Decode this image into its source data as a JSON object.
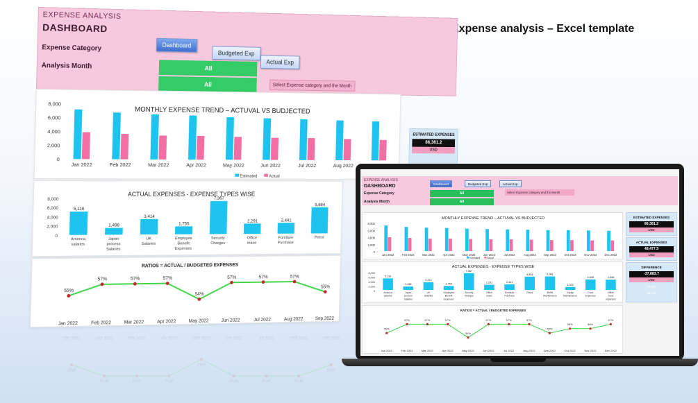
{
  "headline": "Expense analysis – Excel template",
  "dashboard": {
    "title1": "EXPENSE ANALYSIS",
    "title2": "DASHBOARD",
    "buttons": [
      "Dashboard",
      "Budgeted Exp",
      "Actual Exp"
    ],
    "filter_labels": [
      "Expense Category",
      "Analysis Month"
    ],
    "filter_values": [
      "All",
      "All"
    ],
    "hint": "Select Expense category and the Month",
    "kpis": [
      {
        "title": "ESTIMATED EXPENSES",
        "value": "86,361.2",
        "unit": "USD"
      },
      {
        "title": "ACTUAL EXPENSES",
        "value": "48,477.5",
        "unit": "USD"
      },
      {
        "title": "DIFFERENCE",
        "value": "-37,883.7",
        "unit": "USD"
      }
    ],
    "kpi_extra": [
      "57.0%",
      "56.1%"
    ]
  },
  "chart_data": [
    {
      "type": "bar",
      "title": "MONTHLY EXPENSE TREND – ACTUVAL VS BUDJECTED",
      "categories": [
        "Jan 2022",
        "Feb 2022",
        "Mar 2022",
        "Apr 2022",
        "May 2022",
        "Jun 2022",
        "Jul 2022",
        "Aug 2022",
        "Sep 2022",
        "Oct 2022",
        "Nov 2022",
        "Dec 2022"
      ],
      "ylim": [
        0,
        8000
      ],
      "yticks": [
        "8,000",
        "6,000",
        "4,000",
        "2,000",
        "0"
      ],
      "series": [
        {
          "name": "Estimated",
          "color": "#1ec3f0",
          "values": [
            7200,
            6800,
            6600,
            6500,
            6300,
            6200,
            6100,
            6000,
            5900,
            5900,
            5800,
            5700
          ]
        },
        {
          "name": "Actual",
          "color": "#f26fa6",
          "values": [
            3900,
            3700,
            3500,
            3500,
            3400,
            3300,
            3300,
            3200,
            3100,
            3100,
            3000,
            3000
          ]
        }
      ]
    },
    {
      "type": "bar",
      "title": "ACTUAL EXPENSES - EXPENSE TYPES WISE",
      "categories": [
        "America salaries",
        "Japan process Salaries",
        "UK Salaries",
        "Employee Benefit Expenses",
        "Security Charges",
        "Office lease",
        "Furniture Purchase",
        "Petrol",
        "BMW Maintenance",
        "Equity Maintenance",
        "Food Expenses",
        "Office food expenses"
      ],
      "ylim": [
        0,
        8000
      ],
      "yticks": [
        "8,000",
        "6,000",
        "4,000",
        "2,000",
        "0"
      ],
      "labels": [
        "5,116",
        "1,498",
        "3,414",
        "1,755",
        "7,367",
        "2,291",
        "2,441",
        "5,884",
        "5,981",
        "1,302",
        "4,645",
        "4,546"
      ],
      "values": [
        5116,
        1498,
        3414,
        1755,
        7367,
        2291,
        2441,
        5884,
        5981,
        1302,
        4645,
        4546
      ],
      "color": "#1ec3f0"
    },
    {
      "type": "line",
      "title": "RATIOS = ACTUAL / BUDGETED EXPENSES",
      "categories": [
        "Jan 2022",
        "Feb 2022",
        "Mar 2022",
        "Apr 2022",
        "May 2022",
        "Jun 2022",
        "Jul 2022",
        "Aug 2022",
        "Sep 2022",
        "Oct 2022",
        "Nov 2022",
        "Dec 2022"
      ],
      "labels": [
        "55%",
        "57%",
        "57%",
        "57%",
        "54%",
        "57%",
        "57%",
        "57%",
        "55%",
        "56%",
        "56%",
        "57%"
      ],
      "values": [
        55,
        57,
        57,
        57,
        54,
        57,
        57,
        57,
        55,
        56,
        56,
        57
      ],
      "line_color": "#3fd44a",
      "marker_color": "#c62828"
    }
  ]
}
